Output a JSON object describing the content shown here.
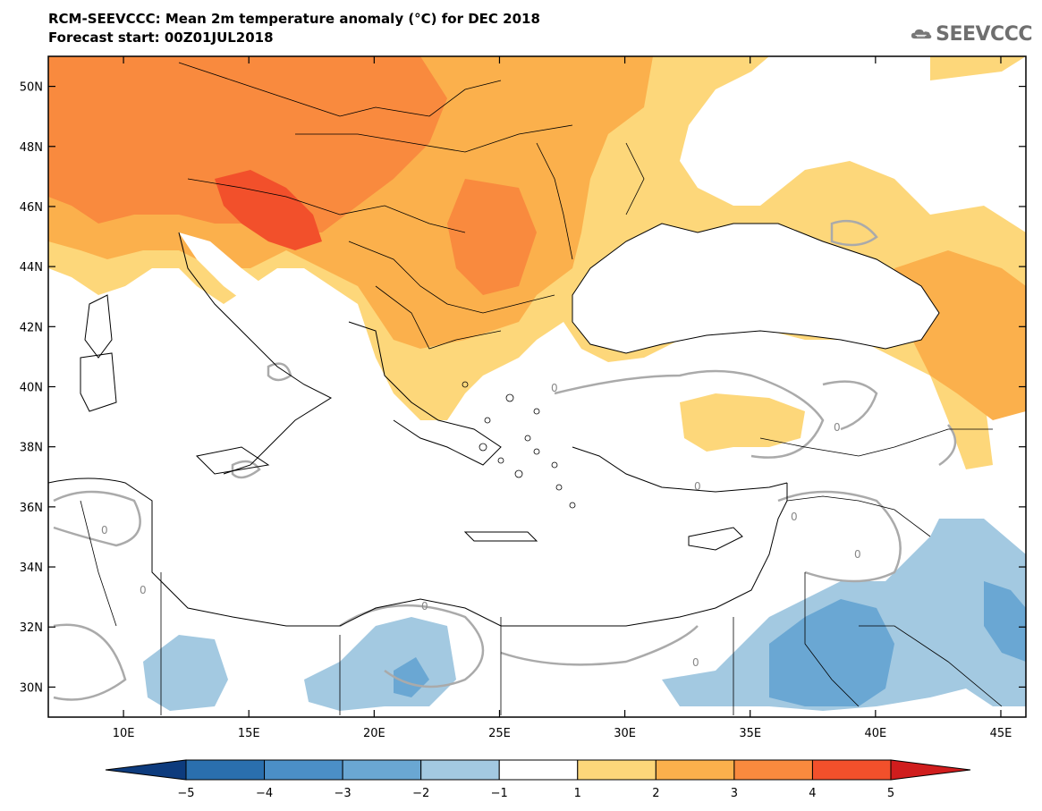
{
  "title_line1": "RCM-SEEVCCC: Mean 2m temperature anomaly (°C) for DEC 2018",
  "title_line2": "Forecast start: 00Z01JUL2018",
  "logo_text": "SEEVCCC",
  "map": {
    "lon_range": [
      7,
      46
    ],
    "lat_range": [
      29,
      51
    ],
    "lat_labels": [
      "50N",
      "48N",
      "46N",
      "44N",
      "42N",
      "40N",
      "38N",
      "36N",
      "34N",
      "32N",
      "30N"
    ],
    "lon_labels": [
      "10E",
      "15E",
      "20E",
      "25E",
      "30E",
      "35E",
      "40E",
      "45E"
    ],
    "contour_label": "0",
    "fill_colors": {
      "light_orange": "#fdd77a",
      "orange": "#fbb04c",
      "dark_orange": "#f98a3e",
      "red": "#f2502b",
      "light_blue": "#a3c9e1",
      "blue": "#6aa7d3",
      "land_contour": "#aaaaaa"
    }
  },
  "colorbar": {
    "tick_labels": [
      "-5",
      "-4",
      "-3",
      "-2",
      "-1",
      "1",
      "2",
      "3",
      "4",
      "5"
    ],
    "colors": [
      "#0d3b7d",
      "#2a6fae",
      "#4b8fc7",
      "#6aa7d3",
      "#a3c9e1",
      "#ffffff",
      "#fdd77a",
      "#fbb04c",
      "#f98a3e",
      "#f2502b",
      "#d01d1d"
    ]
  }
}
